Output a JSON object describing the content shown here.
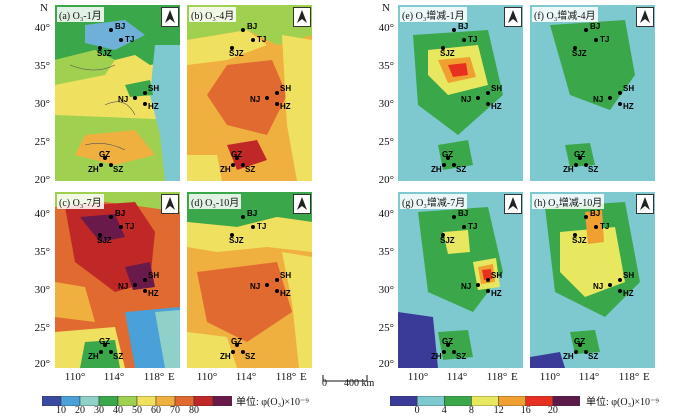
{
  "panels": [
    {
      "id": "a",
      "title": "(a) O₃-1月"
    },
    {
      "id": "b",
      "title": "(b) O₃-4月"
    },
    {
      "id": "c",
      "title": "(c) O₃-7月"
    },
    {
      "id": "d",
      "title": "(d) O₃-10月"
    },
    {
      "id": "e",
      "title": "(e) O₃增减-1月"
    },
    {
      "id": "f",
      "title": "(f) O₃增减-4月"
    },
    {
      "id": "g",
      "title": "(g) O₃增减-7月"
    },
    {
      "id": "h",
      "title": "(h) O₃增减-10月"
    }
  ],
  "cities": [
    "BJ",
    "TJ",
    "SJZ",
    "SH",
    "NJ",
    "HZ",
    "GZ",
    "ZH",
    "SZ"
  ],
  "axes": {
    "north_label": "N",
    "lat_labels": [
      "40°",
      "35°",
      "30°",
      "25°",
      "20°"
    ],
    "lon_labels": [
      "110°",
      "114°",
      "118°"
    ],
    "east_label": "E"
  },
  "scale_bar": {
    "zero": "0",
    "distance": "400 km"
  },
  "legend_left": {
    "ticks": [
      "10",
      "20",
      "30",
      "40",
      "50",
      "60",
      "70",
      "80"
    ],
    "colors": [
      "#3a4aa0",
      "#4aa0d8",
      "#8fd0c8",
      "#3aa84a",
      "#a0d050",
      "#f0e060",
      "#f0b040",
      "#e06a30",
      "#c02828",
      "#6a1a4a"
    ],
    "unit": "单位: φ(O₃)×10⁻⁹"
  },
  "legend_right": {
    "ticks": [
      "0",
      "4",
      "8",
      "12",
      "16",
      "20"
    ],
    "colors": [
      "#3a3a98",
      "#7ec8d0",
      "#3aa84a",
      "#e8e860",
      "#f0a030",
      "#e83020",
      "#5a1a4a"
    ],
    "unit": "单位: φ(O₃)×10⁻⁹"
  },
  "colors": {
    "land": "#e0e0e0",
    "sea": "#d0ecf0",
    "border": "#222222"
  }
}
